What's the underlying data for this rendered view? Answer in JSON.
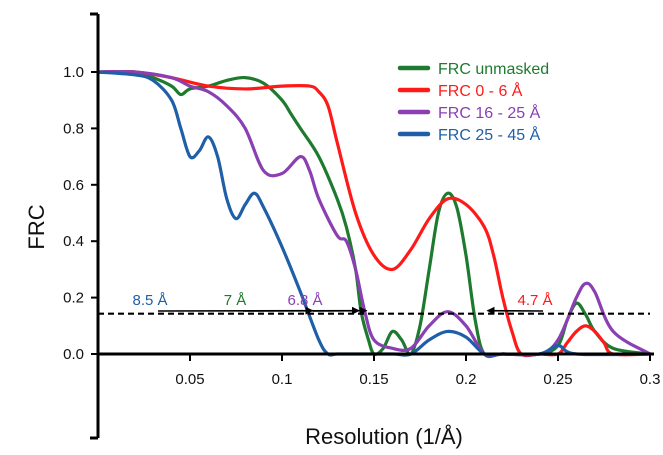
{
  "chart_data": {
    "type": "line",
    "title": "",
    "xlabel": "Resolution (1/Å)",
    "ylabel": "FRC",
    "xlim": [
      0,
      0.3
    ],
    "ylim": [
      0,
      1.0
    ],
    "x_ticks": [
      "0.05",
      "0.1",
      "0.15",
      "0.2",
      "0.25",
      "0.3"
    ],
    "x_tick_values": [
      0.05,
      0.1,
      0.15,
      0.2,
      0.25,
      0.3
    ],
    "y_ticks": [
      "0.0",
      "0.2",
      "0.4",
      "0.6",
      "0.8",
      "1.0"
    ],
    "y_tick_values": [
      0.0,
      0.2,
      0.4,
      0.6,
      0.8,
      1.0
    ],
    "grid": false,
    "legend_position": "top-right",
    "threshold": {
      "y": 0.143,
      "style": "dashed",
      "color": "#000000"
    },
    "series": [
      {
        "name": "FRC unmasked",
        "color": "#1e7a2e",
        "x": [
          0,
          0.02,
          0.03,
          0.04,
          0.045,
          0.05,
          0.06,
          0.07,
          0.08,
          0.09,
          0.1,
          0.105,
          0.11,
          0.12,
          0.13,
          0.135,
          0.14,
          0.143,
          0.147,
          0.15,
          0.155,
          0.16,
          0.165,
          0.17,
          0.175,
          0.18,
          0.185,
          0.19,
          0.195,
          0.2,
          0.205,
          0.21,
          0.22,
          0.24,
          0.25,
          0.255,
          0.26,
          0.265,
          0.27,
          0.28,
          0.3
        ],
        "y": [
          1.0,
          1.0,
          0.98,
          0.95,
          0.92,
          0.94,
          0.95,
          0.97,
          0.98,
          0.96,
          0.9,
          0.85,
          0.8,
          0.7,
          0.55,
          0.45,
          0.3,
          0.15,
          0.05,
          0.0,
          0.02,
          0.08,
          0.05,
          0.0,
          0.1,
          0.3,
          0.5,
          0.57,
          0.52,
          0.35,
          0.12,
          0.0,
          0.0,
          0.0,
          0.03,
          0.12,
          0.18,
          0.14,
          0.08,
          0.02,
          0.0
        ]
      },
      {
        "name": "FRC 0 - 6 Å",
        "color": "#ff1a1a",
        "x": [
          0,
          0.02,
          0.04,
          0.06,
          0.08,
          0.1,
          0.115,
          0.12,
          0.125,
          0.13,
          0.14,
          0.15,
          0.16,
          0.17,
          0.18,
          0.19,
          0.2,
          0.21,
          0.215,
          0.22,
          0.225,
          0.23,
          0.24,
          0.25,
          0.255,
          0.26,
          0.265,
          0.27,
          0.275,
          0.28,
          0.3
        ],
        "y": [
          1.0,
          1.0,
          0.98,
          0.95,
          0.94,
          0.95,
          0.95,
          0.93,
          0.88,
          0.75,
          0.5,
          0.35,
          0.3,
          0.37,
          0.48,
          0.55,
          0.53,
          0.45,
          0.35,
          0.2,
          0.08,
          0.0,
          0.0,
          0.0,
          0.04,
          0.08,
          0.1,
          0.08,
          0.04,
          0.0,
          0.0
        ]
      },
      {
        "name": "FRC 16 - 25 Å",
        "color": "#8a3fb3",
        "x": [
          0,
          0.02,
          0.04,
          0.05,
          0.06,
          0.07,
          0.08,
          0.09,
          0.1,
          0.11,
          0.115,
          0.12,
          0.13,
          0.135,
          0.14,
          0.145,
          0.15,
          0.16,
          0.17,
          0.18,
          0.19,
          0.2,
          0.21,
          0.22,
          0.24,
          0.25,
          0.26,
          0.265,
          0.27,
          0.28,
          0.3
        ],
        "y": [
          1.0,
          1.0,
          0.98,
          0.95,
          0.93,
          0.88,
          0.8,
          0.65,
          0.64,
          0.7,
          0.65,
          0.55,
          0.42,
          0.4,
          0.3,
          0.15,
          0.05,
          0.02,
          0.02,
          0.1,
          0.15,
          0.1,
          0.0,
          0.0,
          0.0,
          0.05,
          0.2,
          0.25,
          0.22,
          0.08,
          0.0
        ]
      },
      {
        "name": "FRC 25 - 45 Å",
        "color": "#1f5fa8",
        "x": [
          0,
          0.02,
          0.03,
          0.04,
          0.045,
          0.05,
          0.055,
          0.06,
          0.065,
          0.07,
          0.075,
          0.08,
          0.085,
          0.09,
          0.1,
          0.11,
          0.12,
          0.125,
          0.13,
          0.14,
          0.16,
          0.17,
          0.18,
          0.19,
          0.2,
          0.21,
          0.22,
          0.24,
          0.25,
          0.26,
          0.3
        ],
        "y": [
          1.0,
          0.99,
          0.97,
          0.9,
          0.8,
          0.7,
          0.72,
          0.77,
          0.7,
          0.55,
          0.48,
          0.53,
          0.57,
          0.52,
          0.38,
          0.22,
          0.05,
          0.0,
          0.0,
          0.0,
          0.0,
          0.0,
          0.05,
          0.08,
          0.06,
          0.0,
          0.0,
          0.0,
          0.03,
          0.0,
          0.0
        ]
      }
    ],
    "annotations": [
      {
        "text": "8.5 Å",
        "color": "#1f5fa8",
        "x": 0.1176,
        "y": 0.143
      },
      {
        "text": "7 Å",
        "color": "#1e7a2e",
        "x": 0.1429,
        "y": 0.143
      },
      {
        "text": "6.8 Å",
        "color": "#8a3fb3",
        "x": 0.147,
        "y": 0.143
      },
      {
        "text": "4.7 Å",
        "color": "#ff1a1a",
        "x": 0.2128,
        "y": 0.143
      }
    ]
  }
}
